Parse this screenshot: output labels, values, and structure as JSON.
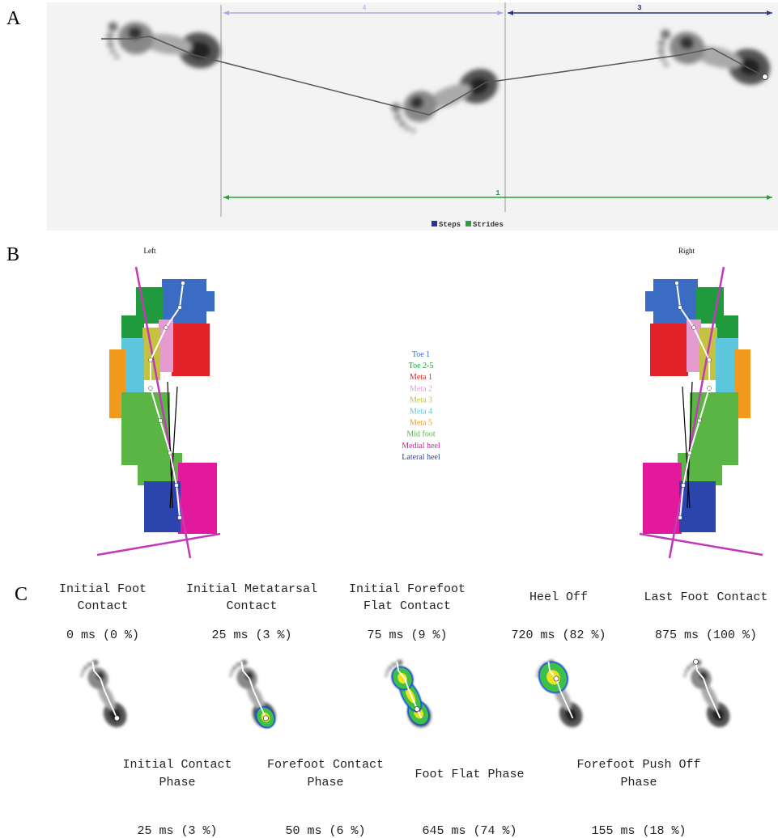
{
  "panel_labels": [
    "A",
    "B",
    "C"
  ],
  "panel_a": {
    "step_labels": [
      "4",
      "3"
    ],
    "stride_label": "1",
    "legend": [
      {
        "name": "Steps",
        "color": "#2a3590"
      },
      {
        "name": "Strides",
        "color": "#2aa040"
      }
    ]
  },
  "panel_b": {
    "sides": [
      "Left",
      "Right"
    ],
    "regions": [
      {
        "name": "Toe 1",
        "color": "#3a6cc4"
      },
      {
        "name": "Toe 2-5",
        "color": "#1f9a3c"
      },
      {
        "name": "Meta 1",
        "color": "#e22228"
      },
      {
        "name": "Meta 2",
        "color": "#e59ad0"
      },
      {
        "name": "Meta 3",
        "color": "#c4c23e"
      },
      {
        "name": "Meta 4",
        "color": "#5cc6dc"
      },
      {
        "name": "Meta 5",
        "color": "#f29a1e"
      },
      {
        "name": "Mid foot",
        "color": "#5ab544"
      },
      {
        "name": "Medial heel",
        "color": "#e2199c"
      },
      {
        "name": "Lateral heel",
        "color": "#2b45ad"
      }
    ]
  },
  "panel_c": {
    "events": [
      {
        "lines": [
          "Initial Foot",
          "Contact"
        ],
        "timing": "0 ms (0 %)"
      },
      {
        "lines": [
          "Initial Metatarsal",
          "Contact"
        ],
        "timing": "25 ms (3 %)"
      },
      {
        "lines": [
          "Initial Forefoot",
          "Flat Contact"
        ],
        "timing": "75 ms (9 %)"
      },
      {
        "lines": [
          "Heel Off"
        ],
        "timing": "720 ms (82 %)"
      },
      {
        "lines": [
          "Last Foot Contact"
        ],
        "timing": "875 ms (100 %)"
      }
    ],
    "phases": [
      {
        "lines": [
          "Initial Contact",
          "Phase"
        ],
        "timing": "25 ms (3 %)"
      },
      {
        "lines": [
          "Forefoot Contact",
          "Phase"
        ],
        "timing": "50 ms (6 %)"
      },
      {
        "lines": [
          "Foot Flat Phase"
        ],
        "timing": "645 ms (74 %)"
      },
      {
        "lines": [
          "Forefoot Push Off",
          "Phase"
        ],
        "timing": "155 ms (18 %)"
      }
    ]
  }
}
